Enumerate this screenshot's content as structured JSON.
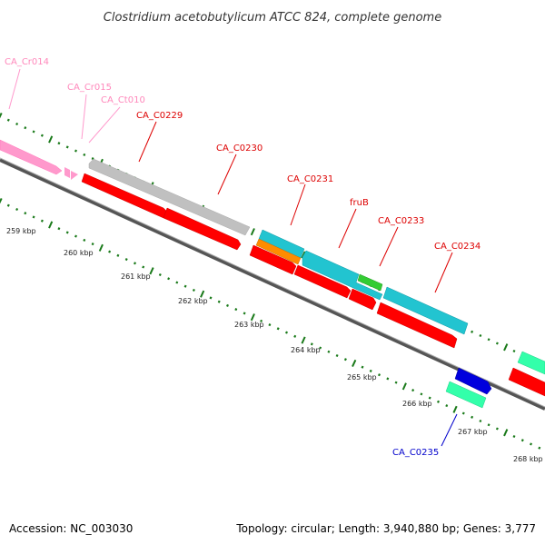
{
  "title": "Clostridium acetobutylicum ATCC 824, complete genome",
  "footer": {
    "accession": "Accession: NC_003030",
    "summary": "Topology: circular; Length: 3,940,880 bp; Genes: 3,777"
  },
  "colors": {
    "rna_pink": "#ff99cc",
    "cds_red": "#ff0000",
    "gray_feature": "#c0c0c0",
    "teal": "#22c4d0",
    "orange": "#ff8c00",
    "green": "#33cc33",
    "blue": "#0000dd",
    "mint": "#33ffaa",
    "ticks": "#1a7a1a",
    "backbone": "#777777",
    "label_red": "#dd0000",
    "label_blue": "#0000cc"
  },
  "gene_labels": [
    {
      "text": "CA_Cr014",
      "color": "#ff88bb"
    },
    {
      "text": "CA_Cr015",
      "color": "#ff88bb"
    },
    {
      "text": "CA_Ct010",
      "color": "#ff88bb"
    },
    {
      "text": "CA_C0229",
      "color": "#dd0000"
    },
    {
      "text": "CA_C0230",
      "color": "#dd0000"
    },
    {
      "text": "CA_C0231",
      "color": "#dd0000"
    },
    {
      "text": "fruB",
      "color": "#dd0000"
    },
    {
      "text": "CA_C0233",
      "color": "#dd0000"
    },
    {
      "text": "CA_C0234",
      "color": "#dd0000"
    },
    {
      "text": "CA_C0235",
      "color": "#0000cc"
    }
  ],
  "kbp_ticks": [
    "259 kbp",
    "260 kbp",
    "261 kbp",
    "262 kbp",
    "263 kbp",
    "264 kbp",
    "265 kbp",
    "266 kbp",
    "267 kbp",
    "268 kbp"
  ]
}
